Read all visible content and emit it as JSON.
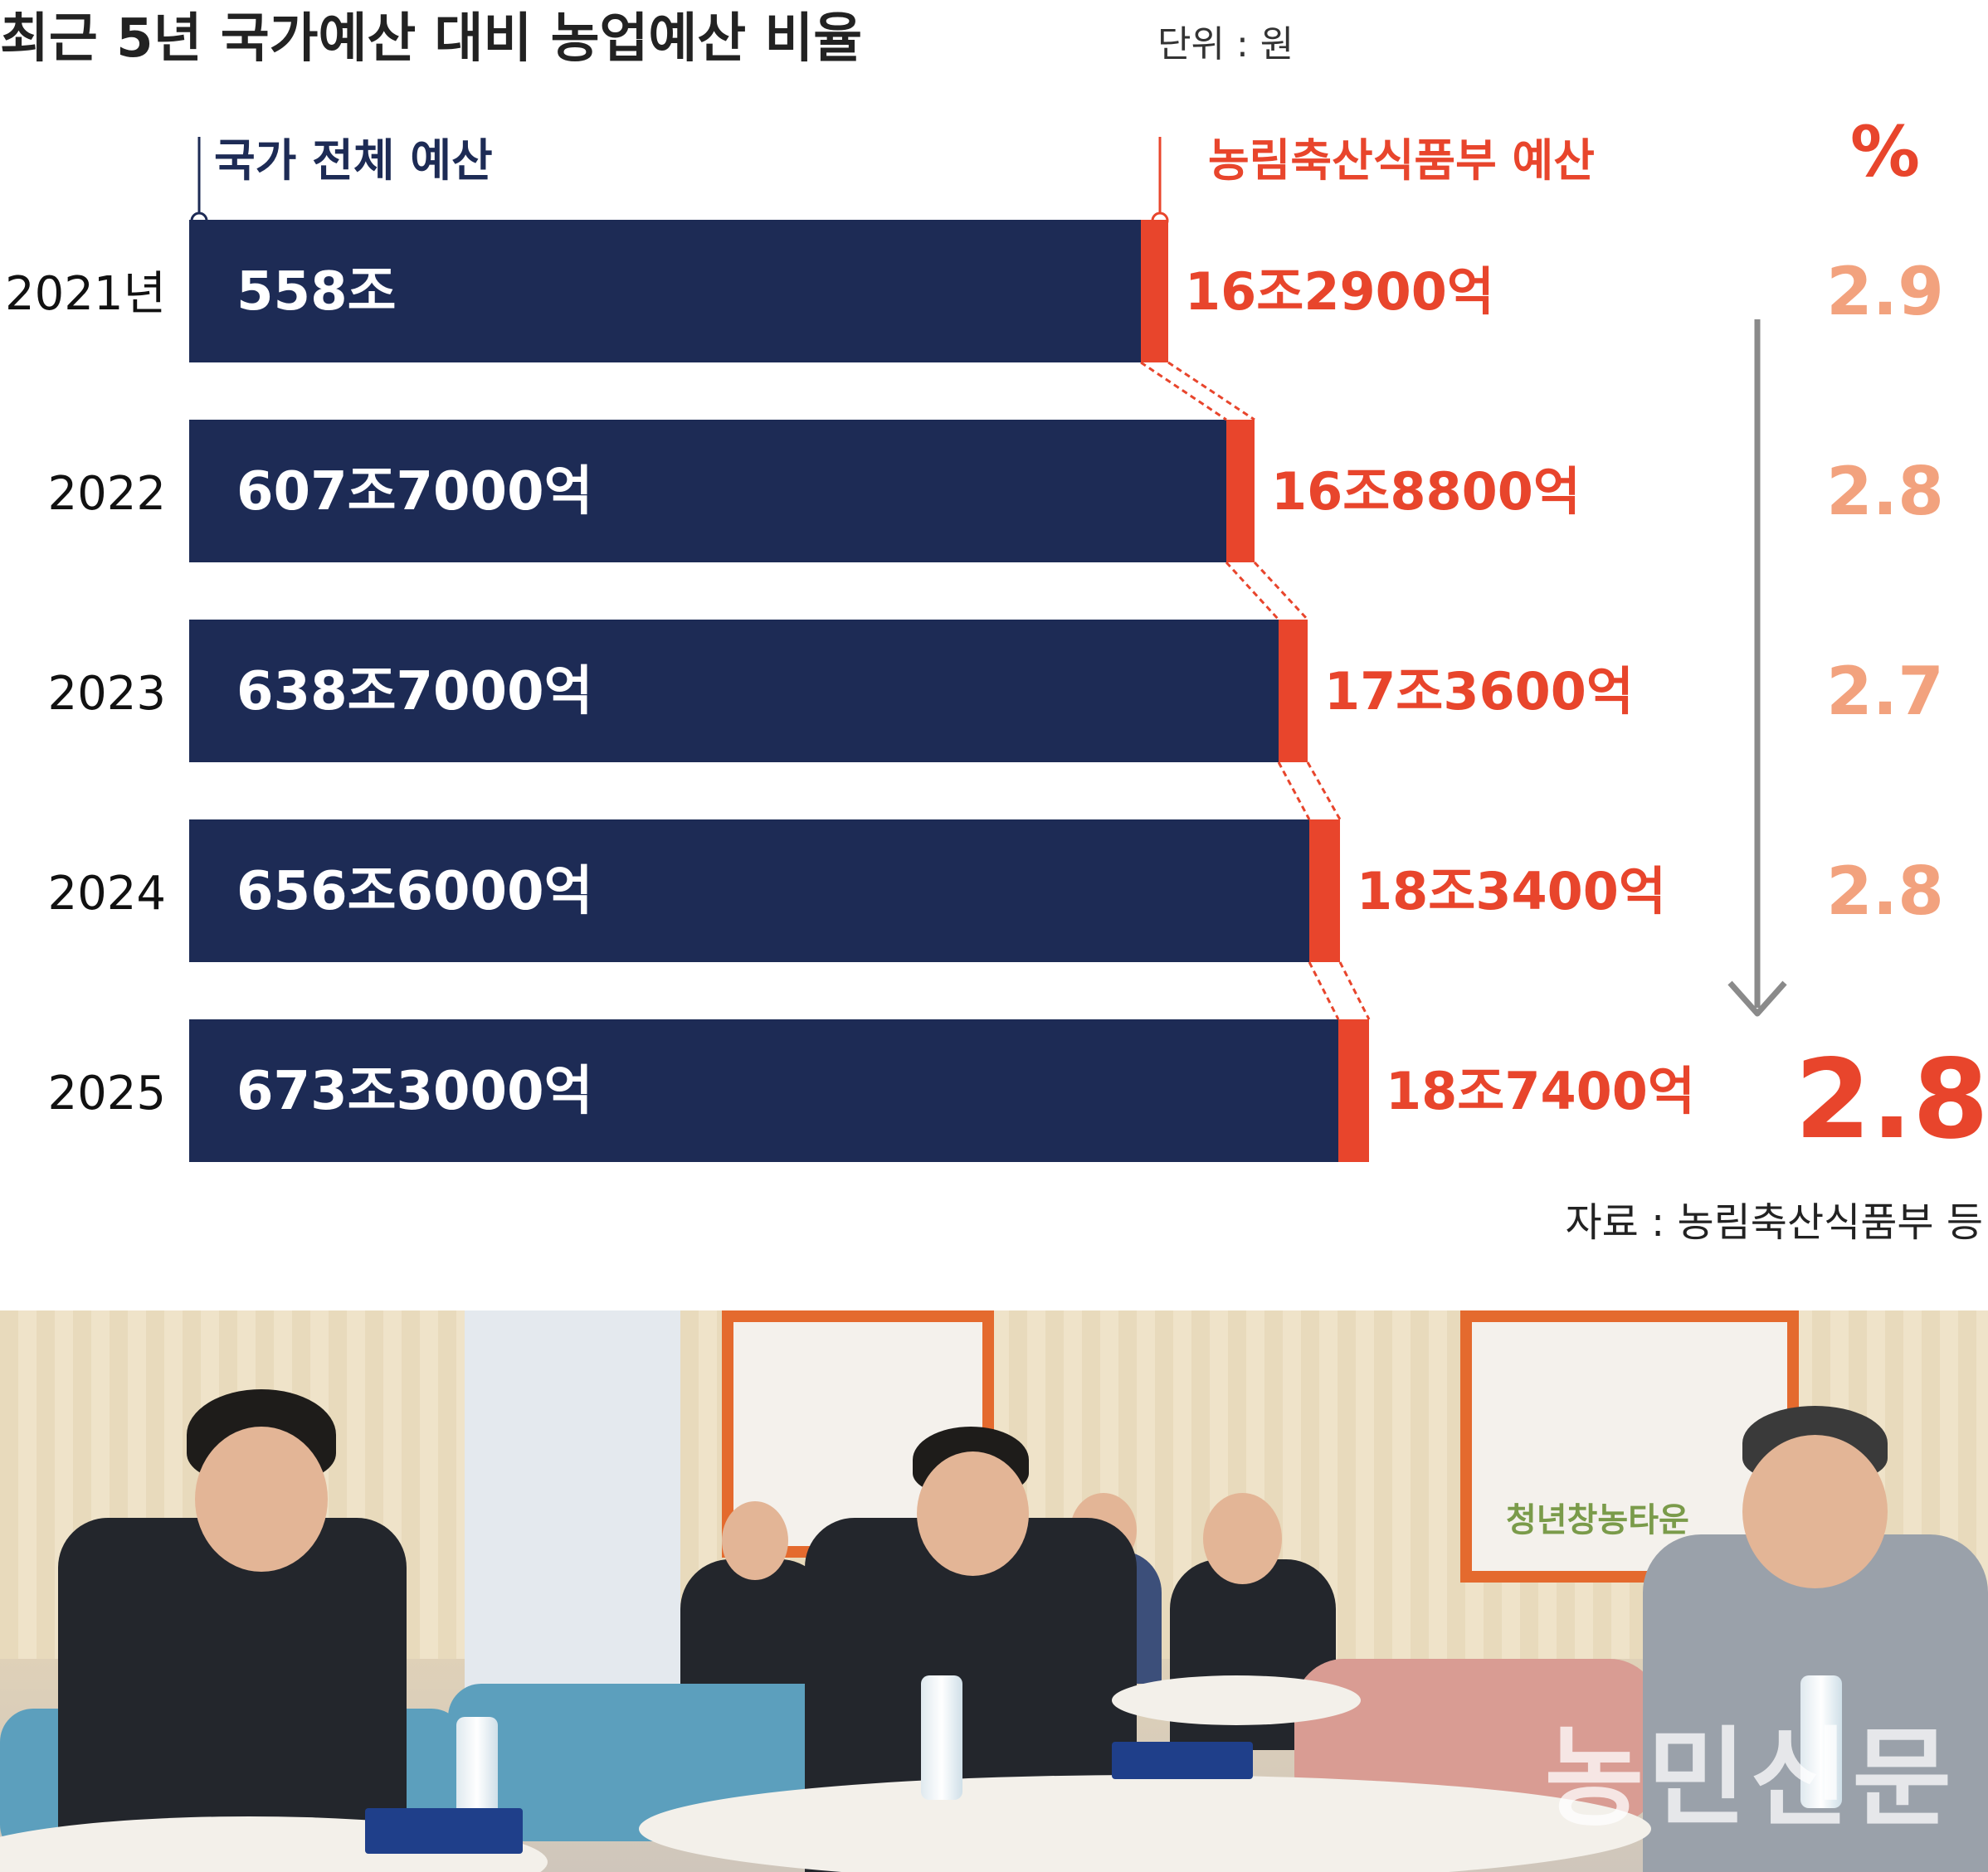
{
  "chart_data": {
    "type": "bar",
    "title": "최근 5년 국가예산 대비 농업예산 비율",
    "unit": "단위 : 원",
    "legend": {
      "total": "국가 전체 예산",
      "agri": "농림축산식품부 예산",
      "percent": "%"
    },
    "years": [
      "2021년",
      "2022",
      "2023",
      "2024",
      "2025"
    ],
    "series": [
      {
        "name": "국가 전체 예산",
        "values": [
          558,
          607.7,
          638.7,
          656.6,
          673.3
        ],
        "labels": [
          "558조",
          "607조7000억",
          "638조7000억",
          "656조6000억",
          "673조3000억"
        ]
      },
      {
        "name": "농림축산식품부 예산",
        "values": [
          16.29,
          16.88,
          17.36,
          18.34,
          18.74
        ],
        "labels": [
          "16조2900억",
          "16조8800억",
          "17조3600억",
          "18조3400억",
          "18조7400억"
        ]
      }
    ],
    "percent": [
      "2.9",
      "2.8",
      "2.7",
      "2.8",
      "2.8"
    ],
    "source": "자료 : 농림축산식품부 등",
    "colors": {
      "total": "#1d2b55",
      "agri": "#e8452c",
      "percent": "#f2a27e",
      "arrow": "#8a8a8a"
    }
  },
  "photo": {
    "watermark": "농민신문",
    "sign_text": "청년창농타운"
  }
}
